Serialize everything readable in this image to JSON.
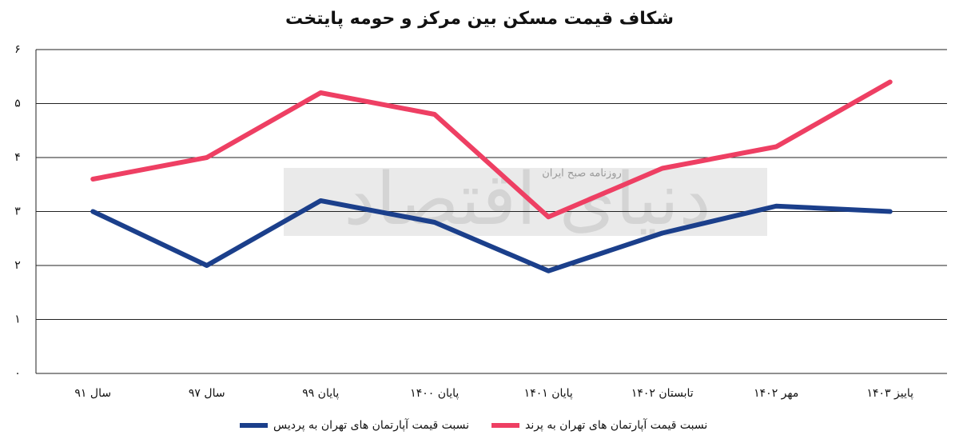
{
  "chart_data": {
    "type": "line",
    "title": "شکاف قیمت مسکن بین مرکز و حومه پایتخت",
    "watermark": "دنیای اقتصاد",
    "watermark_subtitle": "روزنامه صبح ایران",
    "categories": [
      "سال ۹۱",
      "سال ۹۷",
      "پایان ۹۹",
      "پایان ۱۴۰۰",
      "پایان ۱۴۰۱",
      "تابستان ۱۴۰۲",
      "مهر ۱۴۰۲",
      "پاییز ۱۴۰۳"
    ],
    "series": [
      {
        "name": "نسبت قیمت آپارتمان های تهران به پردیس",
        "color": "#1b3f8b",
        "values": [
          3,
          2,
          3.2,
          2.8,
          1.9,
          2.6,
          3.1,
          3.0
        ]
      },
      {
        "name": "نسبت قیمت آپارتمان های تهران به پرند",
        "color": "#ee3f63",
        "values": [
          3.6,
          4.0,
          5.2,
          4.8,
          2.9,
          3.8,
          4.2,
          5.4
        ]
      }
    ],
    "ylim": [
      0,
      6
    ],
    "yticks": [
      {
        "value": 0,
        "label": "۰"
      },
      {
        "value": 1,
        "label": "۱"
      },
      {
        "value": 2,
        "label": "۲"
      },
      {
        "value": 3,
        "label": "۳"
      },
      {
        "value": 4,
        "label": "۴"
      },
      {
        "value": 5,
        "label": "۵"
      },
      {
        "value": 6,
        "label": "۶"
      }
    ],
    "grid": true
  }
}
